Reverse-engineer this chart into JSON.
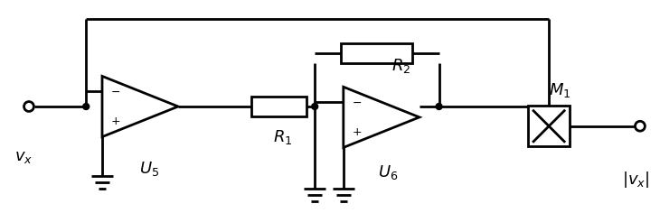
{
  "bg_color": "#ffffff",
  "line_color": "#000000",
  "lw": 2.0,
  "fig_w": 7.3,
  "fig_h": 2.36,
  "labels": {
    "vx_in": "$v_x$",
    "U5": "$U_5$",
    "R1": "$R_1$",
    "U6": "$U_6$",
    "R2": "$R_2$",
    "M1": "$M_1$",
    "vx_out": "$|v_x|$"
  }
}
